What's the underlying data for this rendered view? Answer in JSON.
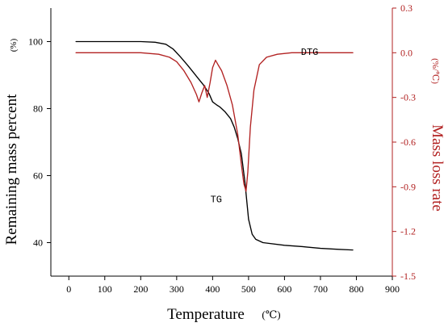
{
  "chart_data": {
    "type": "line",
    "xlabel": "Temperature",
    "xlabel_unit": "(℃)",
    "ylabel_left": "Remaining mass percent",
    "ylabel_left_unit": "(%)",
    "ylabel_right": "Mass loss rate",
    "ylabel_right_unit": "(%/℃)",
    "xlim": [
      -50,
      900
    ],
    "ylim_left": [
      30,
      110
    ],
    "ylim_right": [
      -1.5,
      0.3
    ],
    "x_ticks": [
      0,
      100,
      200,
      300,
      400,
      500,
      600,
      700,
      800,
      900
    ],
    "y_left_ticks": [
      40,
      60,
      80,
      100
    ],
    "y_right_ticks": [
      0.3,
      0.0,
      -0.3,
      -0.6,
      -0.9,
      -1.2,
      -1.5
    ],
    "y_right_tick_labels": [
      "0.3",
      "0.0",
      "-0.3",
      "-0.6",
      "-0.9",
      "-1.2",
      "-1.5"
    ],
    "colors": {
      "axis_left": "#000000",
      "axis_right": "#b22222",
      "tg_line": "#000000",
      "dtg_line": "#b22222"
    },
    "series": [
      {
        "name": "TG",
        "axis": "left",
        "x": [
          20,
          100,
          200,
          240,
          270,
          290,
          310,
          330,
          345,
          360,
          375,
          390,
          400,
          410,
          420,
          435,
          450,
          460,
          470,
          480,
          490,
          500,
          510,
          520,
          540,
          600,
          650,
          700,
          750,
          790
        ],
        "y": [
          100,
          100,
          100,
          99.8,
          99.2,
          97.8,
          95.5,
          93.0,
          91.0,
          89.0,
          87.0,
          84.5,
          82.0,
          81.2,
          80.5,
          79.0,
          77.0,
          74.5,
          71.0,
          66.5,
          58.0,
          47.0,
          42.5,
          41.0,
          40.0,
          39.2,
          38.8,
          38.3,
          38.0,
          37.8
        ]
      },
      {
        "name": "DTG",
        "axis": "right",
        "x": [
          20,
          100,
          200,
          250,
          280,
          300,
          320,
          340,
          355,
          362,
          370,
          378,
          385,
          393,
          400,
          408,
          415,
          425,
          440,
          455,
          470,
          480,
          487,
          493,
          498,
          505,
          515,
          530,
          550,
          580,
          620,
          700,
          790
        ],
        "y": [
          0.0,
          0.0,
          0.0,
          -0.01,
          -0.03,
          -0.06,
          -0.12,
          -0.2,
          -0.28,
          -0.33,
          -0.27,
          -0.22,
          -0.3,
          -0.2,
          -0.1,
          -0.05,
          -0.08,
          -0.12,
          -0.22,
          -0.35,
          -0.55,
          -0.75,
          -0.88,
          -0.93,
          -0.8,
          -0.5,
          -0.25,
          -0.08,
          -0.03,
          -0.01,
          0.0,
          0.0,
          0.0
        ]
      }
    ],
    "annotations": [
      {
        "text": "TG",
        "x": 410,
        "y_left": 52
      },
      {
        "text": "DTG",
        "x": 670,
        "y_left": 96
      }
    ]
  }
}
